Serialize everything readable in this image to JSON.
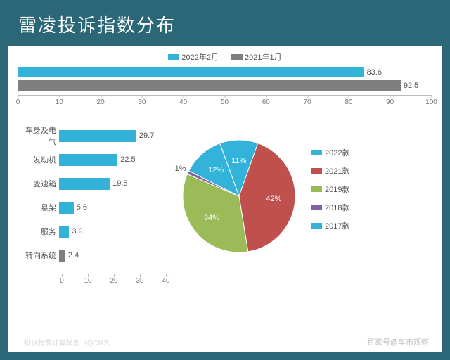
{
  "title": "雷凌投诉指数分布",
  "colors": {
    "frame": "#2b6777",
    "cyan": "#33b3d9",
    "gray": "#7f7f7f",
    "red": "#c0504d",
    "green": "#9bbb59",
    "purple": "#8064a2"
  },
  "top_chart": {
    "type": "bar-horizontal",
    "xlim": [
      0,
      100
    ],
    "xtick_step": 10,
    "series": [
      {
        "label": "2022年2月",
        "value": 83.6,
        "color": "#33b3d9"
      },
      {
        "label": "2021年1月",
        "value": 92.5,
        "color": "#7f7f7f"
      }
    ]
  },
  "left_chart": {
    "type": "bar-horizontal",
    "xlim": [
      0,
      40
    ],
    "xtick_step": 10,
    "bars": [
      {
        "label": "车身及电气",
        "value": 29.7,
        "color": "#33b3d9"
      },
      {
        "label": "发动机",
        "value": 22.5,
        "color": "#33b3d9"
      },
      {
        "label": "变速箱",
        "value": 19.5,
        "color": "#33b3d9"
      },
      {
        "label": "悬架",
        "value": 5.6,
        "color": "#33b3d9"
      },
      {
        "label": "服务",
        "value": 3.9,
        "color": "#33b3d9"
      },
      {
        "label": "转向系统",
        "value": 2.4,
        "color": "#7f7f7f"
      }
    ]
  },
  "pie_chart": {
    "type": "pie",
    "slices": [
      {
        "label": "2022款",
        "value": 11,
        "color": "#33b3d9"
      },
      {
        "label": "2021款",
        "value": 42,
        "color": "#c0504d"
      },
      {
        "label": "2019款",
        "value": 34,
        "color": "#9bbb59"
      },
      {
        "label": "2018款",
        "value": 1,
        "color": "#8064a2"
      },
      {
        "label": "2017款",
        "value": 12,
        "color": "#33b3d9"
      }
    ]
  },
  "footer_left": "投诉指数计算模型（QCMS）",
  "footer_right": "百家号@车市观察"
}
